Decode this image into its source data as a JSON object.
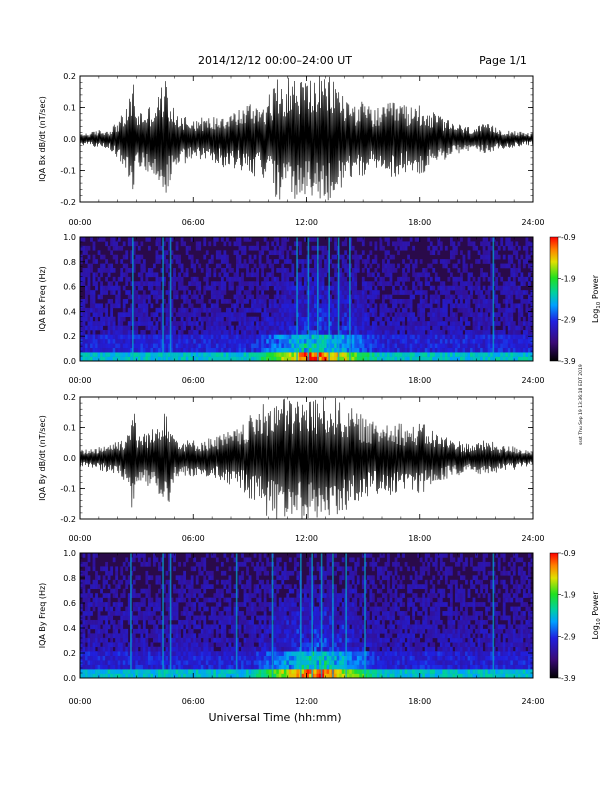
{
  "header": {
    "title": "2014/12/12   00:00–24:00 UT",
    "page": "Page 1/1"
  },
  "footer": {
    "xlabel": "Universal Time (hh:mm)",
    "side_note": "ssst Thu Sep 19 13:36:18 EDT 2019"
  },
  "time_ticks": [
    "00:00",
    "06:00",
    "12:00",
    "18:00",
    "24:00"
  ],
  "colorbar": {
    "ticks": [
      "-0.9",
      "-1.9",
      "-2.9",
      "-3.9"
    ],
    "label_main": "Log",
    "label_sub": "10",
    "label_tail": " Power"
  },
  "colors": {
    "background": "#2a0a4a",
    "waveform": "#000000"
  },
  "chart_data": [
    {
      "type": "line",
      "title": "",
      "ylabel": "IQA Bx dB/dt (nT/sec)",
      "xlabel": "",
      "xlim": [
        0,
        24
      ],
      "ylim": [
        -0.2,
        0.2
      ],
      "yticks": [
        "0.2",
        "0.1",
        "0.0",
        "-0.1",
        "-0.2"
      ],
      "x_unit": "hours UT",
      "envelope": {
        "hours": [
          0,
          0.5,
          1,
          1.5,
          2,
          2.5,
          2.8,
          3,
          3.5,
          4,
          4.5,
          5,
          5.5,
          6,
          6.5,
          7,
          7.5,
          8,
          8.5,
          9,
          9.5,
          10,
          10.5,
          11,
          11.5,
          12,
          12.5,
          13,
          13.5,
          14,
          14.5,
          15,
          15.5,
          16,
          16.5,
          17,
          17.5,
          18,
          18.5,
          19,
          19.5,
          20,
          20.5,
          21,
          21.5,
          22,
          22.5,
          23,
          23.5,
          24
        ],
        "amplitude": [
          0.02,
          0.02,
          0.03,
          0.03,
          0.06,
          0.1,
          0.2,
          0.09,
          0.1,
          0.12,
          0.2,
          0.09,
          0.08,
          0.07,
          0.07,
          0.07,
          0.09,
          0.09,
          0.1,
          0.12,
          0.12,
          0.14,
          0.2,
          0.2,
          0.2,
          0.2,
          0.2,
          0.2,
          0.2,
          0.14,
          0.12,
          0.12,
          0.1,
          0.1,
          0.12,
          0.12,
          0.1,
          0.12,
          0.09,
          0.08,
          0.06,
          0.05,
          0.04,
          0.04,
          0.05,
          0.04,
          0.03,
          0.03,
          0.02,
          0.02
        ]
      }
    },
    {
      "type": "heatmap",
      "title": "",
      "ylabel": "IQA Bx Freq (Hz)",
      "xlabel": "",
      "xlim": [
        0,
        24
      ],
      "ylim": [
        0,
        1.0
      ],
      "yticks": [
        "1.0",
        "0.8",
        "0.6",
        "0.4",
        "0.2",
        "0.0"
      ],
      "color_range": [
        -3.9,
        -0.9
      ],
      "color_label": "Log10 Power",
      "vertical_streak_hours": [
        2.8,
        4.4,
        4.8,
        11.5,
        12.1,
        12.6,
        13.2,
        13.7,
        14.3,
        21.9
      ],
      "active_band_hours": [
        9,
        16
      ]
    },
    {
      "type": "line",
      "title": "",
      "ylabel": "IQA By dB/dt (nT/sec)",
      "xlabel": "",
      "xlim": [
        0,
        24
      ],
      "ylim": [
        -0.2,
        0.2
      ],
      "yticks": [
        "0.2",
        "0.1",
        "0.0",
        "-0.1",
        "-0.2"
      ],
      "x_unit": "hours UT",
      "envelope": {
        "hours": [
          0,
          0.5,
          1,
          1.5,
          2,
          2.5,
          2.8,
          3,
          3.5,
          4,
          4.5,
          5,
          5.5,
          6,
          6.5,
          7,
          7.5,
          8,
          8.5,
          9,
          9.5,
          10,
          10.5,
          11,
          11.5,
          12,
          12.5,
          13,
          13.5,
          14,
          14.5,
          15,
          15.5,
          16,
          16.5,
          17,
          17.5,
          18,
          18.5,
          19,
          19.5,
          20,
          20.5,
          21,
          21.5,
          22,
          22.5,
          23,
          23.5,
          24
        ],
        "amplitude": [
          0.03,
          0.03,
          0.04,
          0.05,
          0.06,
          0.08,
          0.2,
          0.08,
          0.09,
          0.1,
          0.2,
          0.08,
          0.06,
          0.06,
          0.06,
          0.07,
          0.08,
          0.09,
          0.1,
          0.14,
          0.16,
          0.2,
          0.2,
          0.2,
          0.2,
          0.2,
          0.2,
          0.2,
          0.2,
          0.18,
          0.16,
          0.14,
          0.12,
          0.12,
          0.14,
          0.12,
          0.1,
          0.12,
          0.1,
          0.08,
          0.07,
          0.06,
          0.05,
          0.05,
          0.06,
          0.05,
          0.04,
          0.04,
          0.03,
          0.03
        ]
      }
    },
    {
      "type": "heatmap",
      "title": "",
      "ylabel": "IQA By Freq (Hz)",
      "xlabel": "",
      "xlim": [
        0,
        24
      ],
      "ylim": [
        0,
        1.0
      ],
      "yticks": [
        "1.0",
        "0.8",
        "0.6",
        "0.4",
        "0.2",
        "0.0"
      ],
      "color_range": [
        -3.9,
        -0.9
      ],
      "color_label": "Log10 Power",
      "vertical_streak_hours": [
        2.7,
        4.4,
        4.8,
        8.3,
        10.2,
        11.7,
        12.3,
        12.8,
        13.4,
        14.1,
        15.1,
        21.9
      ],
      "active_band_hours": [
        9,
        16
      ]
    }
  ]
}
